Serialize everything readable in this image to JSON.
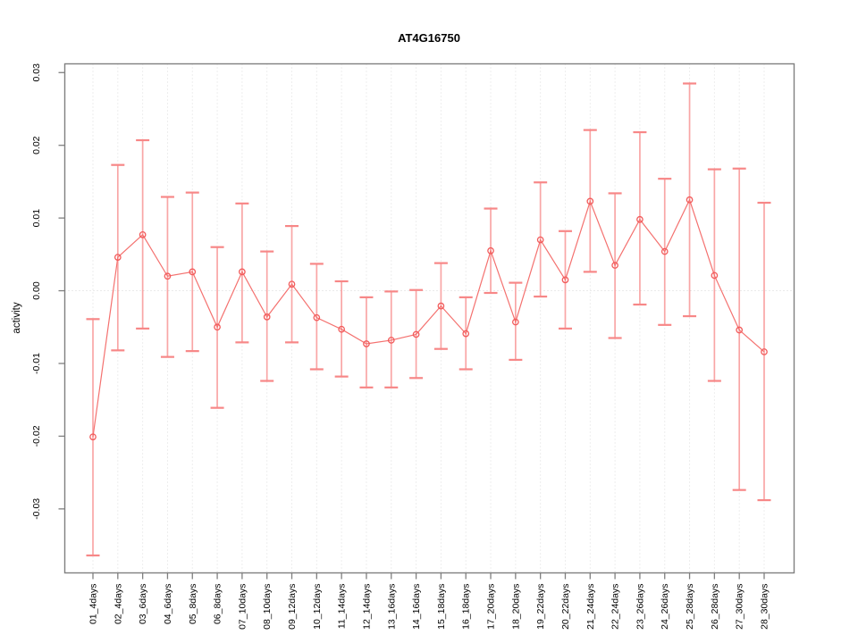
{
  "chart_data": {
    "type": "scatter",
    "title": "AT4G16750",
    "ylabel": "activity",
    "xlabel": "",
    "legend": "none",
    "grid": "vertical dotted gridlines at every category; dotted horizontal line at y=0",
    "categories": [
      "01_4days",
      "02_4days",
      "03_6days",
      "04_6days",
      "05_8days",
      "06_8days",
      "07_10days",
      "08_10days",
      "09_12days",
      "10_12days",
      "11_14days",
      "12_14days",
      "13_16days",
      "14_16days",
      "15_18days",
      "16_18days",
      "17_20days",
      "18_20days",
      "19_22days",
      "20_22days",
      "21_24days",
      "22_24days",
      "23_26days",
      "24_26days",
      "25_28days",
      "26_28days",
      "27_30days",
      "28_30days"
    ],
    "values": [
      -0.0201,
      0.0046,
      0.0077,
      0.002,
      0.0026,
      -0.005,
      0.0026,
      -0.0036,
      0.0009,
      -0.0037,
      -0.0053,
      -0.0073,
      -0.0068,
      -0.006,
      -0.0021,
      -0.0059,
      0.0055,
      -0.0043,
      0.007,
      0.0015,
      0.0123,
      0.0035,
      0.0098,
      0.0054,
      0.0125,
      0.0021,
      -0.0054,
      -0.0084
    ],
    "upper": [
      -0.0039,
      0.0173,
      0.0207,
      0.0129,
      0.0135,
      0.006,
      0.012,
      0.0054,
      0.0089,
      0.0037,
      0.0013,
      -0.0009,
      -0.0001,
      0.0001,
      0.0038,
      -0.0009,
      0.0113,
      0.0011,
      0.0149,
      0.0082,
      0.0221,
      0.0134,
      0.0218,
      0.0154,
      0.0285,
      0.0167,
      0.0168,
      0.0121
    ],
    "lower": [
      -0.0364,
      -0.0082,
      -0.0052,
      -0.0091,
      -0.0083,
      -0.0161,
      -0.0071,
      -0.0124,
      -0.0071,
      -0.0108,
      -0.0118,
      -0.0133,
      -0.0133,
      -0.012,
      -0.008,
      -0.0108,
      -0.0003,
      -0.0095,
      -0.0008,
      -0.0052,
      0.0026,
      -0.0065,
      -0.0019,
      -0.0047,
      -0.0035,
      -0.0124,
      -0.0274,
      -0.0288
    ],
    "ylim": [
      -0.0388,
      0.0312
    ],
    "yticks": [
      -0.03,
      -0.02,
      -0.01,
      0,
      0.01,
      0.02,
      0.03
    ],
    "ytick_labels": [
      "-0.03",
      "-0.02",
      "-0.01",
      "0.00",
      "0.01",
      "0.02",
      "0.03"
    ],
    "colors": {
      "point": "#f25b5b",
      "line": "#f4716f",
      "errorbar": "#f9a6a6",
      "errorbar_cap": "#f78787",
      "grid": "#dcdcdc",
      "zero_line": "#d6d6d6",
      "axis": "#7f7f7f",
      "background": "#ffffff",
      "text": "#000000"
    }
  }
}
